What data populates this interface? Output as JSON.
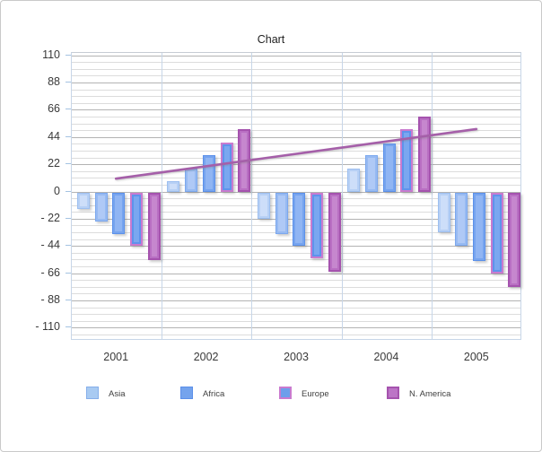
{
  "window": {
    "background": "#ffffff",
    "border_color": "#c9c9c9"
  },
  "chart_data": {
    "type": "bar",
    "title": "Chart",
    "categories": [
      "2001",
      "2002",
      "2003",
      "2004",
      "2005"
    ],
    "y_tick_labels": [
      "110",
      "88",
      "66",
      "44",
      "22",
      "0",
      "- 22",
      "- 44",
      "- 66",
      "- 88",
      "- 110"
    ],
    "ylim": [
      -110,
      110
    ],
    "y_major_unit": 22,
    "y_minor_unit": 5.5,
    "grid": "horizontal-major-and-minor, vertical-category-separators",
    "series": [
      {
        "id": "s1",
        "name": "Asia",
        "values": [
          -13,
          9,
          -21,
          19,
          -32
        ],
        "fill": "#b7d0f5",
        "inner": "#cddef9",
        "border": "#9dbff0",
        "border_width": 1
      },
      {
        "id": "s2",
        "name": "Africa",
        "values": [
          -23,
          19,
          -33,
          30,
          -43
        ],
        "fill": "#97baf2",
        "inner": "#afc9f6",
        "border": "#7ca8ee",
        "border_width": 1
      },
      {
        "id": "s3",
        "name": "",
        "values": [
          -33,
          30,
          -43,
          39,
          -55
        ],
        "fill": "#76a4ef",
        "inner": "#90b5f3",
        "border": "#5c91ea",
        "border_width": 1
      },
      {
        "id": "s4",
        "name": "Europe",
        "values": [
          -43,
          40,
          -53,
          51,
          -65
        ],
        "fill": "#5e93ec",
        "inner": "#7aa7f0",
        "border": "#c97bcf",
        "border_width": 2
      },
      {
        "id": "s5",
        "name": "N. America",
        "values": [
          -54,
          51,
          -64,
          61,
          -76
        ],
        "fill": "#b96fc3",
        "inner": "#c687ce",
        "border": "#a553ae",
        "border_width": 2
      }
    ],
    "trendline": {
      "start_category": "2001",
      "end_category": "2005",
      "start_value": 10,
      "end_value": 50,
      "color": "#a55fa9"
    },
    "legend": {
      "position": "bottom",
      "items": [
        {
          "label": "Asia",
          "fill": "#a8caf2",
          "border": "#85aeea",
          "border_width": 1
        },
        {
          "label": "Africa",
          "fill": "#74a3ed",
          "border": "#5b8fe9",
          "border_width": 1
        },
        {
          "label": "Europe",
          "fill": "#6d9eeb",
          "border": "#c97bcf",
          "border_width": 2
        },
        {
          "label": "N. America",
          "fill": "#bc74c6",
          "border": "#a553ae",
          "border_width": 2
        }
      ]
    }
  }
}
